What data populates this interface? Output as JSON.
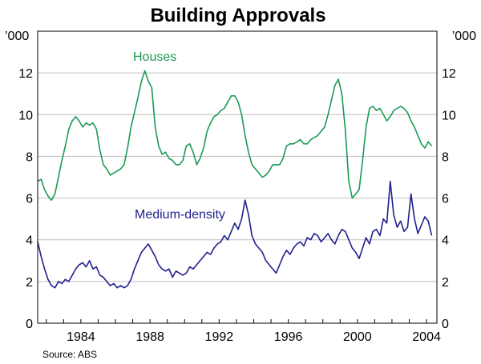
{
  "chart_data": {
    "type": "line",
    "title": "Building Approvals",
    "unit_left": "’000",
    "unit_right": "’000",
    "source": "Source: ABS",
    "xlim": [
      1981.5,
      2004.6
    ],
    "ylim": [
      0,
      14
    ],
    "y_ticks": [
      0,
      2,
      4,
      6,
      8,
      10,
      12
    ],
    "x_ticks": [
      1984,
      1988,
      1992,
      1996,
      2000,
      2004
    ],
    "x_tick_labels": [
      "1984",
      "1988",
      "1992",
      "1996",
      "2000",
      "2004"
    ],
    "grid": true,
    "colors": {
      "axis": "#000000",
      "grid": "#bfbfbf"
    },
    "series": [
      {
        "name": "Houses",
        "label": "Houses",
        "color": "#1a9a55",
        "x": [
          1981.5,
          1981.7,
          1981.9,
          1982.1,
          1982.3,
          1982.5,
          1982.7,
          1982.9,
          1983.1,
          1983.3,
          1983.5,
          1983.7,
          1983.9,
          1984.1,
          1984.3,
          1984.5,
          1984.7,
          1984.9,
          1985.1,
          1985.3,
          1985.5,
          1985.7,
          1985.9,
          1986.1,
          1986.3,
          1986.5,
          1986.7,
          1986.9,
          1987.1,
          1987.3,
          1987.5,
          1987.7,
          1987.9,
          1988.1,
          1988.3,
          1988.5,
          1988.7,
          1988.9,
          1989.1,
          1989.3,
          1989.5,
          1989.7,
          1989.9,
          1990.1,
          1990.3,
          1990.5,
          1990.7,
          1990.9,
          1991.1,
          1991.3,
          1991.5,
          1991.7,
          1991.9,
          1992.1,
          1992.3,
          1992.5,
          1992.7,
          1992.9,
          1993.1,
          1993.3,
          1993.5,
          1993.7,
          1993.9,
          1994.1,
          1994.3,
          1994.5,
          1994.7,
          1994.9,
          1995.1,
          1995.3,
          1995.5,
          1995.7,
          1995.9,
          1996.1,
          1996.3,
          1996.5,
          1996.7,
          1996.9,
          1997.1,
          1997.3,
          1997.5,
          1997.7,
          1997.9,
          1998.1,
          1998.3,
          1998.5,
          1998.7,
          1998.9,
          1999.1,
          1999.3,
          1999.5,
          1999.7,
          1999.9,
          2000.1,
          2000.3,
          2000.5,
          2000.7,
          2000.9,
          2001.1,
          2001.3,
          2001.5,
          2001.7,
          2001.9,
          2002.1,
          2002.3,
          2002.5,
          2002.7,
          2002.9,
          2003.1,
          2003.3,
          2003.5,
          2003.7,
          2003.9,
          2004.1,
          2004.3
        ],
        "values": [
          6.8,
          6.9,
          6.4,
          6.1,
          5.9,
          6.2,
          7.0,
          7.8,
          8.5,
          9.3,
          9.7,
          9.9,
          9.7,
          9.4,
          9.6,
          9.5,
          9.6,
          9.3,
          8.3,
          7.6,
          7.4,
          7.1,
          7.2,
          7.3,
          7.4,
          7.6,
          8.4,
          9.4,
          10.1,
          10.8,
          11.6,
          12.1,
          11.6,
          11.3,
          9.4,
          8.5,
          8.1,
          8.2,
          7.9,
          7.8,
          7.6,
          7.6,
          7.8,
          8.5,
          8.6,
          8.2,
          7.6,
          7.9,
          8.4,
          9.2,
          9.6,
          9.9,
          10.0,
          10.2,
          10.3,
          10.6,
          10.9,
          10.9,
          10.6,
          10.0,
          9.0,
          8.2,
          7.6,
          7.4,
          7.2,
          7.0,
          7.1,
          7.3,
          7.6,
          7.6,
          7.6,
          7.9,
          8.5,
          8.6,
          8.6,
          8.7,
          8.8,
          8.6,
          8.6,
          8.8,
          8.9,
          9.0,
          9.2,
          9.4,
          10.0,
          10.7,
          11.4,
          11.7,
          11.0,
          9.3,
          6.8,
          6.0,
          6.2,
          6.4,
          7.8,
          9.4,
          10.3,
          10.4,
          10.2,
          10.3,
          10.0,
          9.7,
          9.9,
          10.2,
          10.3,
          10.4,
          10.3,
          10.1,
          9.7,
          9.4,
          9.0,
          8.6,
          8.4,
          8.7,
          8.5
        ]
      },
      {
        "name": "Medium-density",
        "label": "Medium-density",
        "color": "#1f1f8f",
        "x": [
          1981.5,
          1981.7,
          1981.9,
          1982.1,
          1982.3,
          1982.5,
          1982.7,
          1982.9,
          1983.1,
          1983.3,
          1983.5,
          1983.7,
          1983.9,
          1984.1,
          1984.3,
          1984.5,
          1984.7,
          1984.9,
          1985.1,
          1985.3,
          1985.5,
          1985.7,
          1985.9,
          1986.1,
          1986.3,
          1986.5,
          1986.7,
          1986.9,
          1987.1,
          1987.3,
          1987.5,
          1987.7,
          1987.9,
          1988.1,
          1988.3,
          1988.5,
          1988.7,
          1988.9,
          1989.1,
          1989.3,
          1989.5,
          1989.7,
          1989.9,
          1990.1,
          1990.3,
          1990.5,
          1990.7,
          1990.9,
          1991.1,
          1991.3,
          1991.5,
          1991.7,
          1991.9,
          1992.1,
          1992.3,
          1992.5,
          1992.7,
          1992.9,
          1993.1,
          1993.3,
          1993.5,
          1993.7,
          1993.9,
          1994.1,
          1994.3,
          1994.5,
          1994.7,
          1994.9,
          1995.1,
          1995.3,
          1995.5,
          1995.7,
          1995.9,
          1996.1,
          1996.3,
          1996.5,
          1996.7,
          1996.9,
          1997.1,
          1997.3,
          1997.5,
          1997.7,
          1997.9,
          1998.1,
          1998.3,
          1998.5,
          1998.7,
          1998.9,
          1999.1,
          1999.3,
          1999.5,
          1999.7,
          1999.9,
          2000.1,
          2000.3,
          2000.5,
          2000.7,
          2000.9,
          2001.1,
          2001.3,
          2001.5,
          2001.7,
          2001.9,
          2002.1,
          2002.3,
          2002.5,
          2002.7,
          2002.9,
          2003.1,
          2003.3,
          2003.5,
          2003.7,
          2003.9,
          2004.1,
          2004.3
        ],
        "values": [
          3.9,
          3.2,
          2.6,
          2.1,
          1.8,
          1.7,
          2.0,
          1.9,
          2.1,
          2.0,
          2.3,
          2.6,
          2.8,
          2.9,
          2.7,
          3.0,
          2.6,
          2.7,
          2.3,
          2.2,
          2.0,
          1.8,
          1.9,
          1.7,
          1.8,
          1.7,
          1.8,
          2.1,
          2.6,
          3.0,
          3.4,
          3.6,
          3.8,
          3.5,
          3.2,
          2.8,
          2.6,
          2.5,
          2.6,
          2.2,
          2.5,
          2.4,
          2.3,
          2.4,
          2.7,
          2.6,
          2.8,
          3.0,
          3.2,
          3.4,
          3.3,
          3.6,
          3.8,
          3.9,
          4.2,
          4.0,
          4.4,
          4.8,
          4.5,
          5.0,
          5.9,
          5.2,
          4.2,
          3.8,
          3.6,
          3.4,
          3.0,
          2.8,
          2.6,
          2.4,
          2.8,
          3.2,
          3.5,
          3.3,
          3.6,
          3.8,
          3.9,
          3.7,
          4.1,
          4.0,
          4.3,
          4.2,
          3.9,
          4.1,
          4.3,
          4.0,
          3.8,
          4.2,
          4.5,
          4.4,
          4.0,
          3.6,
          3.4,
          3.1,
          3.6,
          4.1,
          3.8,
          4.4,
          4.5,
          4.2,
          5.0,
          4.8,
          6.8,
          5.2,
          4.6,
          4.9,
          4.4,
          4.6,
          6.2,
          5.0,
          4.3,
          4.7,
          5.1,
          4.9,
          4.2
        ]
      }
    ]
  }
}
